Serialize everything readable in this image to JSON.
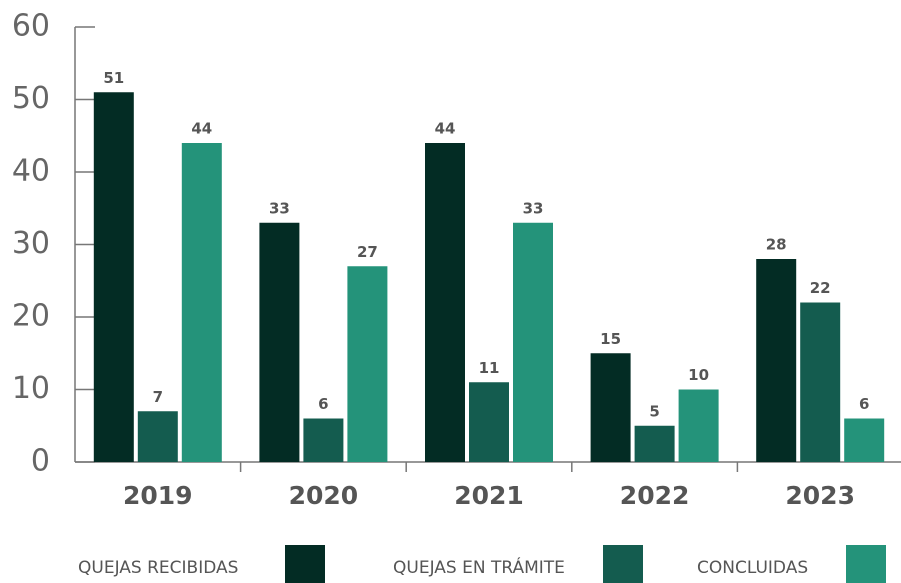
{
  "chart_data": {
    "type": "bar",
    "categories": [
      "2019",
      "2020",
      "2021",
      "2022",
      "2023"
    ],
    "series": [
      {
        "name": "QUEJAS RECIBIDAS",
        "color": "#032c24",
        "values": [
          51,
          33,
          44,
          15,
          28
        ]
      },
      {
        "name": "QUEJAS EN TRÁMITE",
        "color": "#145c4f",
        "values": [
          7,
          6,
          11,
          5,
          22
        ]
      },
      {
        "name": "CONCLUIDAS",
        "color": "#24937a",
        "values": [
          44,
          27,
          33,
          10,
          6
        ]
      }
    ],
    "ylim": [
      0,
      60
    ],
    "yticks": [
      0,
      10,
      20,
      30,
      40,
      50,
      60
    ],
    "grid": false,
    "legend": "bottom"
  }
}
